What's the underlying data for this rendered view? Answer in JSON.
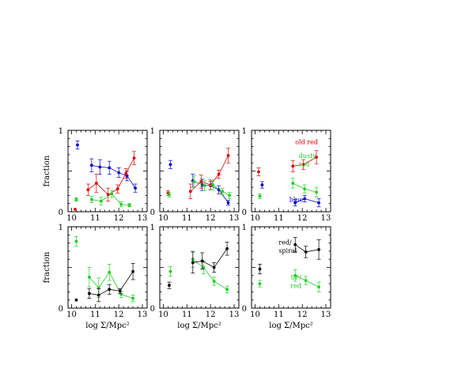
{
  "chart_data": [
    {
      "type": "scatter",
      "panel": "top-left",
      "ylabel": "fraction",
      "xlabel": "",
      "xlim": [
        9.85,
        13.2
      ],
      "ylim": [
        0,
        1
      ],
      "xticks": [
        "10",
        "11",
        "12",
        "13"
      ],
      "yticks": [
        "0",
        "1"
      ],
      "series": [
        {
          "color": "#0000cc",
          "x": [
            10.25
          ],
          "y": [
            0.82
          ],
          "err": [
            0.05
          ],
          "connected": false
        },
        {
          "color": "#0000cc",
          "x": [
            10.85,
            11.2,
            11.6,
            12.0,
            12.35,
            12.7
          ],
          "y": [
            0.57,
            0.55,
            0.54,
            0.48,
            0.44,
            0.29
          ],
          "err": [
            0.08,
            0.09,
            0.08,
            0.06,
            0.06,
            0.05
          ],
          "connected": true
        },
        {
          "color": "#e00000",
          "x": [
            10.15
          ],
          "y": [
            0.03
          ],
          "err": [
            0.0
          ],
          "connected": false
        },
        {
          "color": "#e00000",
          "x": [
            10.7,
            11.05,
            11.55,
            11.95,
            12.3,
            12.65
          ],
          "y": [
            0.27,
            0.35,
            0.21,
            0.28,
            0.47,
            0.66
          ],
          "err": [
            0.07,
            0.11,
            0.08,
            0.05,
            0.06,
            0.08
          ],
          "connected": true
        },
        {
          "color": "#22cc22",
          "x": [
            10.2
          ],
          "y": [
            0.15
          ],
          "err": [
            0.02
          ],
          "connected": false
        },
        {
          "color": "#22cc22",
          "x": [
            10.85,
            11.25,
            11.7,
            12.1,
            12.45
          ],
          "y": [
            0.15,
            0.13,
            0.22,
            0.09,
            0.08
          ],
          "err": [
            0.04,
            0.05,
            0.04,
            0.03,
            0.02
          ],
          "connected": true
        }
      ],
      "annotations": []
    },
    {
      "type": "scatter",
      "panel": "top-middle",
      "ylabel": "",
      "xlabel": "",
      "xlim": [
        9.85,
        13.2
      ],
      "ylim": [
        0,
        1
      ],
      "xticks": [
        "10",
        "11",
        "12",
        "13"
      ],
      "yticks": [
        "0",
        "1"
      ],
      "series": [
        {
          "color": "#0000cc",
          "x": [
            10.3
          ],
          "y": [
            0.58
          ],
          "err": [
            0.05
          ],
          "connected": false
        },
        {
          "color": "#0000cc",
          "x": [
            11.25,
            11.65,
            12.0,
            12.35,
            12.75
          ],
          "y": [
            0.38,
            0.33,
            0.32,
            0.27,
            0.11
          ],
          "err": [
            0.08,
            0.07,
            0.05,
            0.05,
            0.03
          ],
          "connected": true
        },
        {
          "color": "#e00000",
          "x": [
            10.2
          ],
          "y": [
            0.23
          ],
          "err": [
            0.03
          ],
          "connected": false
        },
        {
          "color": "#e00000",
          "x": [
            11.15,
            11.6,
            12.0,
            12.35,
            12.75
          ],
          "y": [
            0.25,
            0.37,
            0.33,
            0.46,
            0.69
          ],
          "err": [
            0.09,
            0.08,
            0.06,
            0.05,
            0.09
          ],
          "connected": true
        },
        {
          "color": "#22cc22",
          "x": [
            10.25
          ],
          "y": [
            0.21
          ],
          "err": [
            0.03
          ],
          "connected": false
        },
        {
          "color": "#22cc22",
          "x": [
            11.3,
            11.75,
            12.1,
            12.5,
            12.8
          ],
          "y": [
            0.37,
            0.32,
            0.33,
            0.25,
            0.2
          ],
          "err": [
            0.07,
            0.06,
            0.06,
            0.04,
            0.04
          ],
          "connected": true
        }
      ],
      "annotations": []
    },
    {
      "type": "scatter",
      "panel": "top-right",
      "ylabel": "",
      "xlabel": "",
      "xlim": [
        9.85,
        13.2
      ],
      "ylim": [
        0,
        1
      ],
      "xticks": [
        "10",
        "11",
        "12",
        "13"
      ],
      "yticks": [
        "0",
        "1"
      ],
      "series": [
        {
          "color": "#e00000",
          "x": [
            10.15
          ],
          "y": [
            0.49
          ],
          "err": [
            0.05
          ],
          "connected": false
        },
        {
          "color": "#e00000",
          "x": [
            11.6,
            12.05,
            12.6
          ],
          "y": [
            0.56,
            0.58,
            0.67
          ],
          "err": [
            0.07,
            0.06,
            0.08
          ],
          "connected": true
        },
        {
          "color": "#0000cc",
          "x": [
            10.3
          ],
          "y": [
            0.33
          ],
          "err": [
            0.04
          ],
          "connected": false
        },
        {
          "color": "#0000cc",
          "x": [
            11.7,
            12.1,
            12.7
          ],
          "y": [
            0.11,
            0.16,
            0.11
          ],
          "err": [
            0.04,
            0.04,
            0.05
          ],
          "connected": true
        },
        {
          "color": "#22cc22",
          "x": [
            10.2
          ],
          "y": [
            0.19
          ],
          "err": [
            0.03
          ],
          "connected": false
        },
        {
          "color": "#22cc22",
          "x": [
            11.6,
            12.1,
            12.6
          ],
          "y": [
            0.35,
            0.28,
            0.24
          ],
          "err": [
            0.06,
            0.05,
            0.06
          ],
          "connected": true
        }
      ],
      "annotations": [
        {
          "text": "old red",
          "color": "#e00000",
          "x": 11.7,
          "y": 0.83
        },
        {
          "text": "dusty",
          "color": "#22cc22",
          "x": 11.85,
          "y": 0.66
        },
        {
          "text": "red",
          "color": "#22cc22",
          "x": 11.85,
          "y": 0.56
        },
        {
          "text": "blue",
          "color": "#0000cc",
          "x": 11.45,
          "y": 0.12
        }
      ]
    },
    {
      "type": "scatter",
      "panel": "bottom-left",
      "ylabel": "fraction",
      "xlabel": "log Σ/Mpc²",
      "xlim": [
        9.85,
        13.2
      ],
      "ylim": [
        0,
        1
      ],
      "xticks": [
        "10",
        "11",
        "12",
        "13"
      ],
      "yticks": [
        "0",
        "1"
      ],
      "series": [
        {
          "color": "#22cc22",
          "x": [
            10.2
          ],
          "y": [
            0.82
          ],
          "err": [
            0.06
          ],
          "connected": false
        },
        {
          "color": "#22cc22",
          "x": [
            10.75,
            11.15,
            11.6,
            12.1,
            12.6
          ],
          "y": [
            0.38,
            0.25,
            0.44,
            0.17,
            0.12
          ],
          "err": [
            0.12,
            0.12,
            0.1,
            0.04,
            0.04
          ],
          "connected": true
        },
        {
          "color": "#000000",
          "x": [
            10.2
          ],
          "y": [
            0.1
          ],
          "err": [
            0.0
          ],
          "connected": false
        },
        {
          "color": "#000000",
          "x": [
            10.75,
            11.15,
            11.6,
            12.05,
            12.6
          ],
          "y": [
            0.18,
            0.16,
            0.23,
            0.21,
            0.45
          ],
          "err": [
            0.06,
            0.08,
            0.06,
            0.03,
            0.1
          ],
          "connected": true
        }
      ],
      "annotations": []
    },
    {
      "type": "scatter",
      "panel": "bottom-middle",
      "ylabel": "",
      "xlabel": "log Σ/Mpc²",
      "xlim": [
        9.85,
        13.2
      ],
      "ylim": [
        0,
        1
      ],
      "xticks": [
        "10",
        "11",
        "12",
        "13"
      ],
      "yticks": [
        "0",
        "1"
      ],
      "series": [
        {
          "color": "#22cc22",
          "x": [
            10.3
          ],
          "y": [
            0.45
          ],
          "err": [
            0.06
          ],
          "connected": false
        },
        {
          "color": "#22cc22",
          "x": [
            11.25,
            11.7,
            12.15,
            12.7
          ],
          "y": [
            0.6,
            0.5,
            0.33,
            0.23
          ],
          "err": [
            0.1,
            0.08,
            0.05,
            0.04
          ],
          "connected": true
        },
        {
          "color": "#000000",
          "x": [
            10.25
          ],
          "y": [
            0.28
          ],
          "err": [
            0.04
          ],
          "connected": false
        },
        {
          "color": "#000000",
          "x": [
            11.25,
            11.65,
            12.15,
            12.7
          ],
          "y": [
            0.56,
            0.58,
            0.5,
            0.73
          ],
          "err": [
            0.13,
            0.1,
            0.06,
            0.08
          ],
          "connected": true
        }
      ],
      "annotations": []
    },
    {
      "type": "scatter",
      "panel": "bottom-right",
      "ylabel": "",
      "xlabel": "log Σ/Mpc²",
      "xlim": [
        9.85,
        13.2
      ],
      "ylim": [
        0,
        1
      ],
      "xticks": [
        "10",
        "11",
        "12",
        "13"
      ],
      "yticks": [
        "0",
        "1"
      ],
      "series": [
        {
          "color": "#000000",
          "x": [
            10.2
          ],
          "y": [
            0.48
          ],
          "err": [
            0.06
          ],
          "connected": false
        },
        {
          "color": "#000000",
          "x": [
            11.7,
            12.15,
            12.7
          ],
          "y": [
            0.78,
            0.69,
            0.72
          ],
          "err": [
            0.09,
            0.07,
            0.12
          ],
          "connected": true
        },
        {
          "color": "#22cc22",
          "x": [
            10.2
          ],
          "y": [
            0.3
          ],
          "err": [
            0.04
          ],
          "connected": false
        },
        {
          "color": "#22cc22",
          "x": [
            11.7,
            12.15,
            12.7
          ],
          "y": [
            0.4,
            0.34,
            0.26
          ],
          "err": [
            0.07,
            0.05,
            0.06
          ],
          "connected": true
        }
      ],
      "annotations": [
        {
          "text": "red/",
          "color": "#000000",
          "x": 11.0,
          "y": 0.78
        },
        {
          "text": "spiral",
          "color": "#000000",
          "x": 11.0,
          "y": 0.68
        },
        {
          "text": "SF/",
          "color": "#22cc22",
          "x": 11.5,
          "y": 0.35
        },
        {
          "text": "red",
          "color": "#22cc22",
          "x": 11.5,
          "y": 0.25
        }
      ]
    }
  ]
}
